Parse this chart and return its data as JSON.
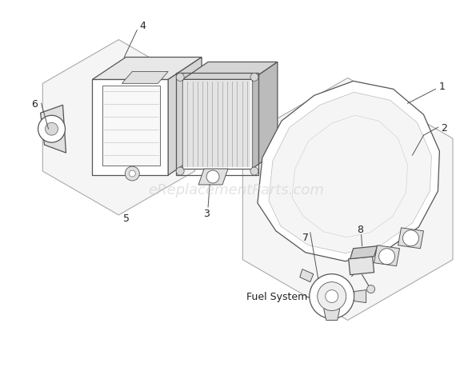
{
  "bg_color": "#ffffff",
  "watermark_text": "eReplacementParts.com",
  "watermark_color": "#cccccc",
  "watermark_fontsize": 13,
  "label_fontsize": 9,
  "line_color": "#555555",
  "hex_edge_color": "#aaaaaa",
  "hex_face_color": "#f4f4f4"
}
